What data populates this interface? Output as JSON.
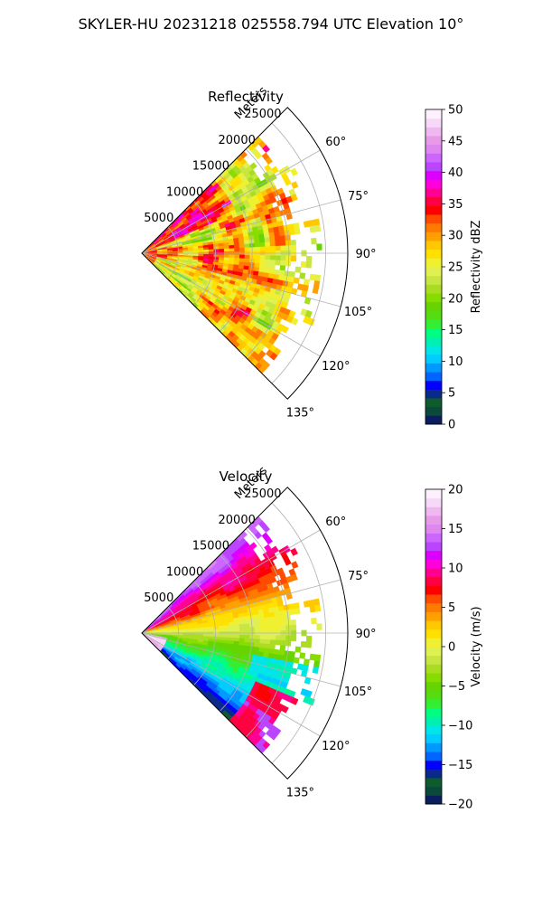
{
  "suptitle": "SKYLER-HU  20231218  025558.794 UTC Elevation 10°",
  "chart_data": [
    {
      "type": "heatmap",
      "projection": "polar-sector",
      "title": "Reflectivity",
      "range_label": "Meters",
      "range_ticks": [
        5000,
        10000,
        15000,
        20000,
        25000
      ],
      "range_tick_labels": [
        "5000",
        "10000",
        "15000",
        "20000",
        "25000"
      ],
      "range_max": 28000,
      "angle_range_deg": [
        45,
        135
      ],
      "angle_ticks": [
        60,
        75,
        90,
        105,
        120,
        135
      ],
      "angle_tick_labels": [
        "60°",
        "75°",
        "90°",
        "105°",
        "120°",
        "135°"
      ],
      "grid": true,
      "colorbar": {
        "label": "Reflectivity dBZ",
        "vmin": 0,
        "vmax": 50,
        "ticks": [
          0,
          5,
          10,
          15,
          20,
          25,
          30,
          35,
          40,
          45,
          50
        ],
        "tick_labels": [
          "0",
          "5",
          "10",
          "15",
          "20",
          "25",
          "30",
          "35",
          "40",
          "45",
          "50"
        ],
        "colors": [
          "#0a1d5c",
          "#0b4a3a",
          "#0d5c2c",
          "#0a2a8a",
          "#0000ff",
          "#0066ff",
          "#0099ff",
          "#00ccff",
          "#00e6e6",
          "#00f0b0",
          "#00ff80",
          "#33ee33",
          "#55dd11",
          "#66d400",
          "#88dd00",
          "#aadd22",
          "#c8e640",
          "#e0f050",
          "#f0f030",
          "#ffe000",
          "#ffc800",
          "#ffa000",
          "#ff7a00",
          "#ff4a00",
          "#ff0000",
          "#ff0040",
          "#ff0090",
          "#ff00dd",
          "#dd00ff",
          "#bb44ff",
          "#cc66ff",
          "#dd88ee",
          "#e899e8",
          "#f0b8f0",
          "#f8d8f8",
          "#fff0ff"
        ]
      }
    },
    {
      "type": "heatmap",
      "projection": "polar-sector",
      "title": "Velocity",
      "range_label": "Meters",
      "range_ticks": [
        5000,
        10000,
        15000,
        20000,
        25000
      ],
      "range_tick_labels": [
        "5000",
        "10000",
        "15000",
        "20000",
        "25000"
      ],
      "range_max": 28000,
      "angle_range_deg": [
        45,
        135
      ],
      "angle_ticks": [
        60,
        75,
        90,
        105,
        120,
        135
      ],
      "angle_tick_labels": [
        "60°",
        "75°",
        "90°",
        "105°",
        "120°",
        "135°"
      ],
      "grid": true,
      "colorbar": {
        "label": "Velocity (m/s)",
        "vmin": -20,
        "vmax": 20,
        "ticks": [
          -20,
          -15,
          -10,
          -5,
          0,
          5,
          10,
          15,
          20
        ],
        "tick_labels": [
          "−20",
          "−15",
          "−10",
          "−5",
          "0",
          "5",
          "10",
          "15",
          "20"
        ],
        "colors": [
          "#0a1d5c",
          "#0b4a3a",
          "#0d5c2c",
          "#0a2a8a",
          "#0000ff",
          "#0066ff",
          "#0099ff",
          "#00ccff",
          "#00e6e6",
          "#00f0b0",
          "#00ff80",
          "#33ee33",
          "#55dd11",
          "#66d400",
          "#88dd00",
          "#aadd22",
          "#c8e640",
          "#e0f050",
          "#f0f030",
          "#ffe000",
          "#ffc800",
          "#ffa000",
          "#ff7a00",
          "#ff4a00",
          "#ff0000",
          "#ff0040",
          "#ff0090",
          "#ff00dd",
          "#dd00ff",
          "#bb44ff",
          "#cc66ff",
          "#dd88ee",
          "#e899e8",
          "#f0b8f0",
          "#f8d8f8",
          "#fff0ff"
        ]
      }
    }
  ]
}
